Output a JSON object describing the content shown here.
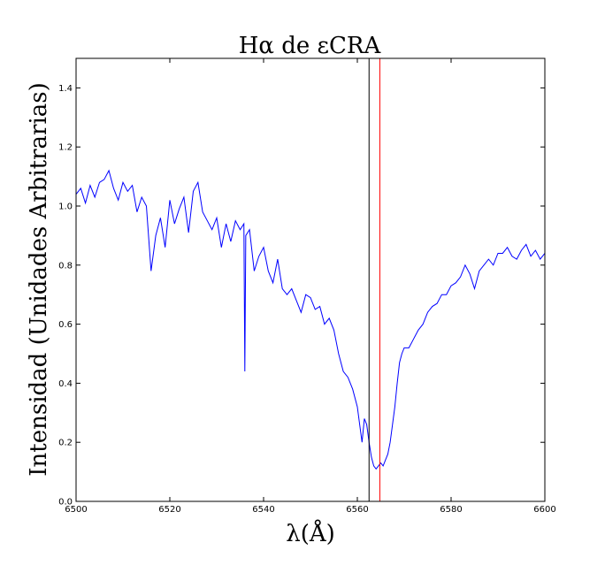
{
  "chart_data": {
    "type": "line",
    "title": "Hα de εCRA",
    "xlabel": "λ(Å)",
    "ylabel": "Intensidad (Unidades Arbitrarias)",
    "xlim": [
      6500,
      6600
    ],
    "ylim": [
      0.0,
      1.5
    ],
    "xticks": [
      "6500",
      "6520",
      "6540",
      "6560",
      "6580",
      "6600"
    ],
    "yticks": [
      "0.0",
      "0.2",
      "0.4",
      "0.6",
      "0.8",
      "1.0",
      "1.2",
      "1.4"
    ],
    "grid": false,
    "series": [
      {
        "color": "#0000ff",
        "x": [
          6500,
          6501,
          6502,
          6503,
          6504,
          6505,
          6506,
          6507,
          6508,
          6509,
          6510,
          6511,
          6512,
          6513,
          6514,
          6515,
          6516,
          6517,
          6518,
          6519,
          6520,
          6521,
          6522,
          6523,
          6524,
          6525,
          6526,
          6527,
          6528,
          6529,
          6530,
          6531,
          6532,
          6533,
          6534,
          6535,
          6535.8,
          6536,
          6536.2,
          6537,
          6538,
          6539,
          6540,
          6541,
          6542,
          6543,
          6544,
          6545,
          6546,
          6547,
          6548,
          6549,
          6550,
          6551,
          6552,
          6553,
          6554,
          6555,
          6556,
          6557,
          6558,
          6559,
          6560,
          6560.5,
          6561,
          6561.5,
          6562,
          6562.5,
          6563,
          6563.5,
          6564,
          6564.5,
          6565,
          6565.5,
          6566,
          6566.5,
          6567,
          6567.5,
          6568,
          6568.5,
          6569,
          6569.5,
          6570,
          6571,
          6572,
          6573,
          6574,
          6575,
          6576,
          6577,
          6578,
          6579,
          6580,
          6581,
          6582,
          6583,
          6584,
          6585,
          6586,
          6587,
          6588,
          6589,
          6590,
          6591,
          6592,
          6593,
          6594,
          6595,
          6596,
          6597,
          6598,
          6599,
          6600
        ],
        "y": [
          1.04,
          1.06,
          1.01,
          1.07,
          1.03,
          1.08,
          1.09,
          1.12,
          1.06,
          1.02,
          1.08,
          1.05,
          1.07,
          0.98,
          1.03,
          1.0,
          0.78,
          0.9,
          0.96,
          0.86,
          1.02,
          0.94,
          0.99,
          1.03,
          0.91,
          1.05,
          1.08,
          0.98,
          0.95,
          0.92,
          0.96,
          0.86,
          0.94,
          0.88,
          0.95,
          0.92,
          0.94,
          0.44,
          0.9,
          0.92,
          0.78,
          0.83,
          0.86,
          0.78,
          0.74,
          0.82,
          0.72,
          0.7,
          0.72,
          0.68,
          0.64,
          0.7,
          0.69,
          0.65,
          0.66,
          0.6,
          0.62,
          0.58,
          0.5,
          0.44,
          0.42,
          0.38,
          0.32,
          0.26,
          0.2,
          0.28,
          0.26,
          0.2,
          0.15,
          0.12,
          0.11,
          0.12,
          0.13,
          0.12,
          0.14,
          0.16,
          0.2,
          0.26,
          0.32,
          0.4,
          0.47,
          0.5,
          0.52,
          0.52,
          0.55,
          0.58,
          0.6,
          0.64,
          0.66,
          0.67,
          0.7,
          0.7,
          0.73,
          0.74,
          0.76,
          0.8,
          0.77,
          0.72,
          0.78,
          0.8,
          0.82,
          0.8,
          0.84,
          0.84,
          0.86,
          0.83,
          0.82,
          0.85,
          0.87,
          0.83,
          0.85,
          0.82,
          0.84
        ]
      }
    ],
    "vlines": [
      {
        "x": 6562.5,
        "color": "#000000"
      },
      {
        "x": 6564.8,
        "color": "#ff0000"
      }
    ]
  }
}
